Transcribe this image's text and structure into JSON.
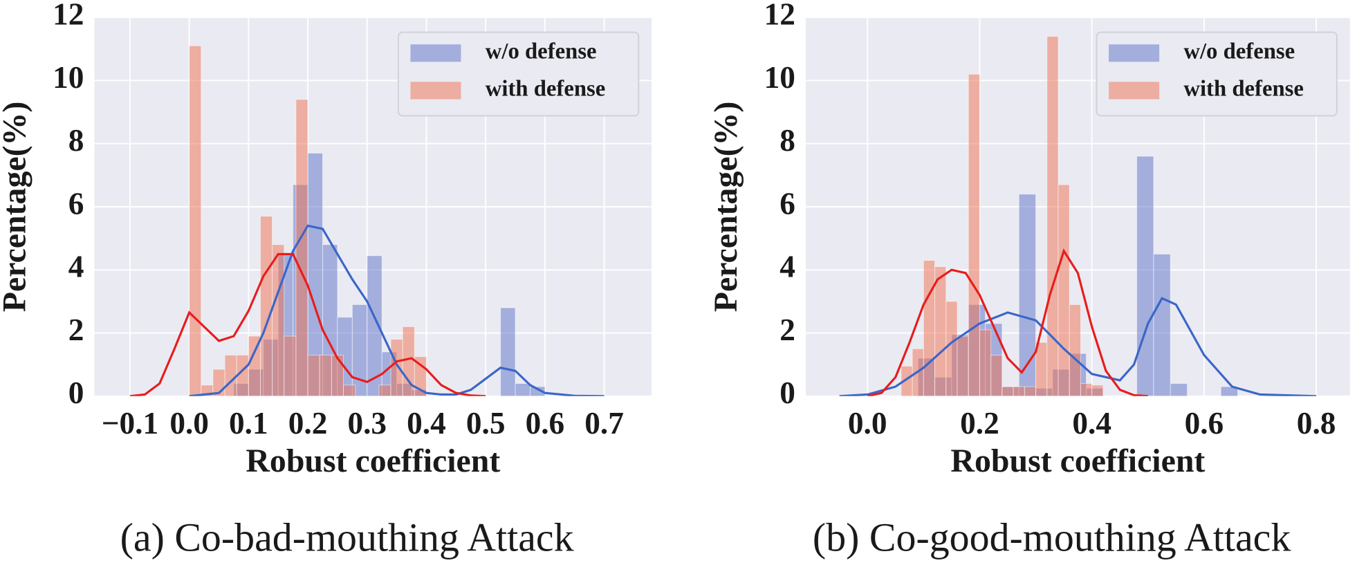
{
  "chart_data": [
    {
      "type": "histogram",
      "caption": "(a) Co-bad-mouthing Attack",
      "xlabel": "Robust coefficient",
      "ylabel": "Percentage(%)",
      "xlim": [
        -0.16,
        0.78
      ],
      "xticks": [
        {
          "value": -0.1,
          "label": "−0.1"
        },
        {
          "value": 0,
          "label": "0.0"
        },
        0.1,
        0.2,
        0.3,
        0.4,
        0.5,
        0.6,
        0.7
      ],
      "ylim": [
        0,
        12
      ],
      "yticks": [
        0,
        2,
        4,
        6,
        8,
        10,
        12
      ],
      "grid": true,
      "legend": "upper right",
      "series": [
        {
          "name": "w/o defense",
          "color": "#5b72c8",
          "bins": [
            0.075,
            0.1,
            0.125,
            0.15,
            0.175,
            0.2,
            0.225,
            0.25,
            0.275,
            0.3,
            0.325,
            0.35,
            0.375,
            0.4,
            0.425,
            0.45,
            0.475,
            0.5,
            0.525,
            0.55,
            0.575,
            0.6
          ],
          "values": [
            0.4,
            0.85,
            1.8,
            4.5,
            6.7,
            7.7,
            4.8,
            2.5,
            2.9,
            4.45,
            1.4,
            0.4,
            0.2,
            0,
            0,
            0,
            0,
            0,
            2.8,
            0.4,
            0.3
          ]
        },
        {
          "name": "with defense",
          "color": "#f0704f",
          "bins": [
            0,
            0.02,
            0.04,
            0.06,
            0.08,
            0.1,
            0.12,
            0.14,
            0.16,
            0.18,
            0.2,
            0.22,
            0.24,
            0.26,
            0.28,
            0.3,
            0.32,
            0.34,
            0.36,
            0.38,
            0.4
          ],
          "values": [
            11.1,
            0.35,
            0.85,
            1.3,
            1.3,
            1.9,
            5.7,
            4.8,
            1.9,
            9.4,
            1.3,
            1.3,
            1.3,
            0.35,
            0,
            0,
            0.35,
            1.8,
            2.2,
            1.25
          ]
        }
      ],
      "kde": [
        {
          "color": "#3a66c8",
          "x": [
            0,
            0.05,
            0.1,
            0.125,
            0.15,
            0.175,
            0.2,
            0.225,
            0.25,
            0.275,
            0.3,
            0.325,
            0.35,
            0.375,
            0.4,
            0.425,
            0.45,
            0.475,
            0.5,
            0.525,
            0.55,
            0.575,
            0.6,
            0.65,
            0.7
          ],
          "values": [
            0,
            0.1,
            1.0,
            2.0,
            3.3,
            4.6,
            5.4,
            5.3,
            4.5,
            3.7,
            3.0,
            2.0,
            1.0,
            0.35,
            0.1,
            0.05,
            0.05,
            0.2,
            0.55,
            0.9,
            0.8,
            0.35,
            0.1,
            0.01,
            0
          ]
        },
        {
          "color": "#e81c1c",
          "x": [
            -0.1,
            -0.075,
            -0.05,
            -0.025,
            0,
            0.025,
            0.05,
            0.075,
            0.1,
            0.125,
            0.15,
            0.175,
            0.2,
            0.225,
            0.25,
            0.275,
            0.3,
            0.325,
            0.35,
            0.375,
            0.4,
            0.425,
            0.45,
            0.475,
            0.5
          ],
          "values": [
            0,
            0.05,
            0.4,
            1.5,
            2.65,
            2.2,
            1.75,
            1.9,
            2.7,
            3.8,
            4.5,
            4.5,
            3.5,
            2.1,
            1.2,
            0.6,
            0.45,
            0.7,
            1.1,
            1.2,
            0.85,
            0.35,
            0.1,
            0.02,
            0
          ]
        }
      ]
    },
    {
      "type": "histogram",
      "caption": "(b) Co-good-mouthing Attack",
      "xlabel": "Robust coefficient",
      "ylabel": "Percentage(%)",
      "xlim": [
        -0.11,
        0.86
      ],
      "xticks": [
        {
          "value": 0,
          "label": "0.0"
        },
        0.2,
        0.4,
        0.6,
        0.8
      ],
      "ylim": [
        0,
        12
      ],
      "yticks": [
        0,
        2,
        4,
        6,
        8,
        10,
        12
      ],
      "grid": true,
      "legend": "upper right",
      "series": [
        {
          "name": "w/o defense",
          "color": "#5b72c8",
          "bins": [
            0.09,
            0.12,
            0.15,
            0.18,
            0.21,
            0.24,
            0.27,
            0.3,
            0.33,
            0.36,
            0.39,
            0.42,
            0.45,
            0.48,
            0.51,
            0.54,
            0.57,
            0.6,
            0.63,
            0.66,
            0.69
          ],
          "values": [
            1.2,
            0.6,
            1.95,
            2.9,
            2.3,
            0.3,
            6.4,
            0.25,
            0.85,
            1.35,
            0.25,
            0,
            0,
            7.6,
            4.5,
            0.4,
            0,
            0,
            0.3,
            0
          ]
        },
        {
          "name": "with defense",
          "color": "#f0704f",
          "bins": [
            0.06,
            0.08,
            0.1,
            0.12,
            0.14,
            0.16,
            0.18,
            0.2,
            0.22,
            0.24,
            0.26,
            0.28,
            0.3,
            0.32,
            0.34,
            0.36,
            0.38,
            0.4,
            0.42
          ],
          "values": [
            0.95,
            1.5,
            4.3,
            4.1,
            3.0,
            1.9,
            10.2,
            2.1,
            1.3,
            0.3,
            0.3,
            0.3,
            1.7,
            11.4,
            6.7,
            2.9,
            0.4,
            0.35
          ]
        }
      ],
      "kde": [
        {
          "color": "#3a66c8",
          "x": [
            -0.05,
            0,
            0.05,
            0.1,
            0.15,
            0.2,
            0.25,
            0.3,
            0.35,
            0.4,
            0.45,
            0.475,
            0.5,
            0.525,
            0.55,
            0.6,
            0.65,
            0.7,
            0.8
          ],
          "values": [
            0,
            0.05,
            0.3,
            0.9,
            1.7,
            2.3,
            2.65,
            2.4,
            1.5,
            0.7,
            0.5,
            1.0,
            2.3,
            3.1,
            2.9,
            1.3,
            0.3,
            0.05,
            0
          ]
        },
        {
          "color": "#e81c1c",
          "x": [
            0,
            0.025,
            0.05,
            0.075,
            0.1,
            0.125,
            0.15,
            0.175,
            0.2,
            0.225,
            0.25,
            0.275,
            0.3,
            0.325,
            0.35,
            0.375,
            0.4,
            0.425,
            0.45,
            0.475,
            0.5
          ],
          "values": [
            0,
            0.1,
            0.6,
            1.7,
            2.9,
            3.7,
            4.0,
            3.9,
            3.2,
            2.2,
            1.2,
            0.75,
            1.4,
            3.2,
            4.6,
            3.9,
            2.2,
            0.8,
            0.2,
            0.03,
            0
          ]
        }
      ]
    }
  ]
}
